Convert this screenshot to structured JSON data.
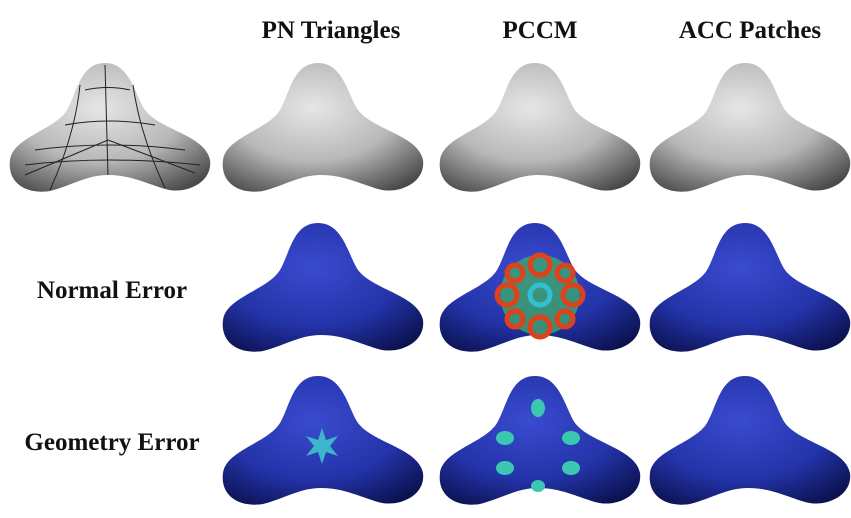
{
  "columns": [
    "PN Triangles",
    "PCCM",
    "ACC Patches"
  ],
  "rows": [
    "Normal Error",
    "Geometry Error"
  ]
}
